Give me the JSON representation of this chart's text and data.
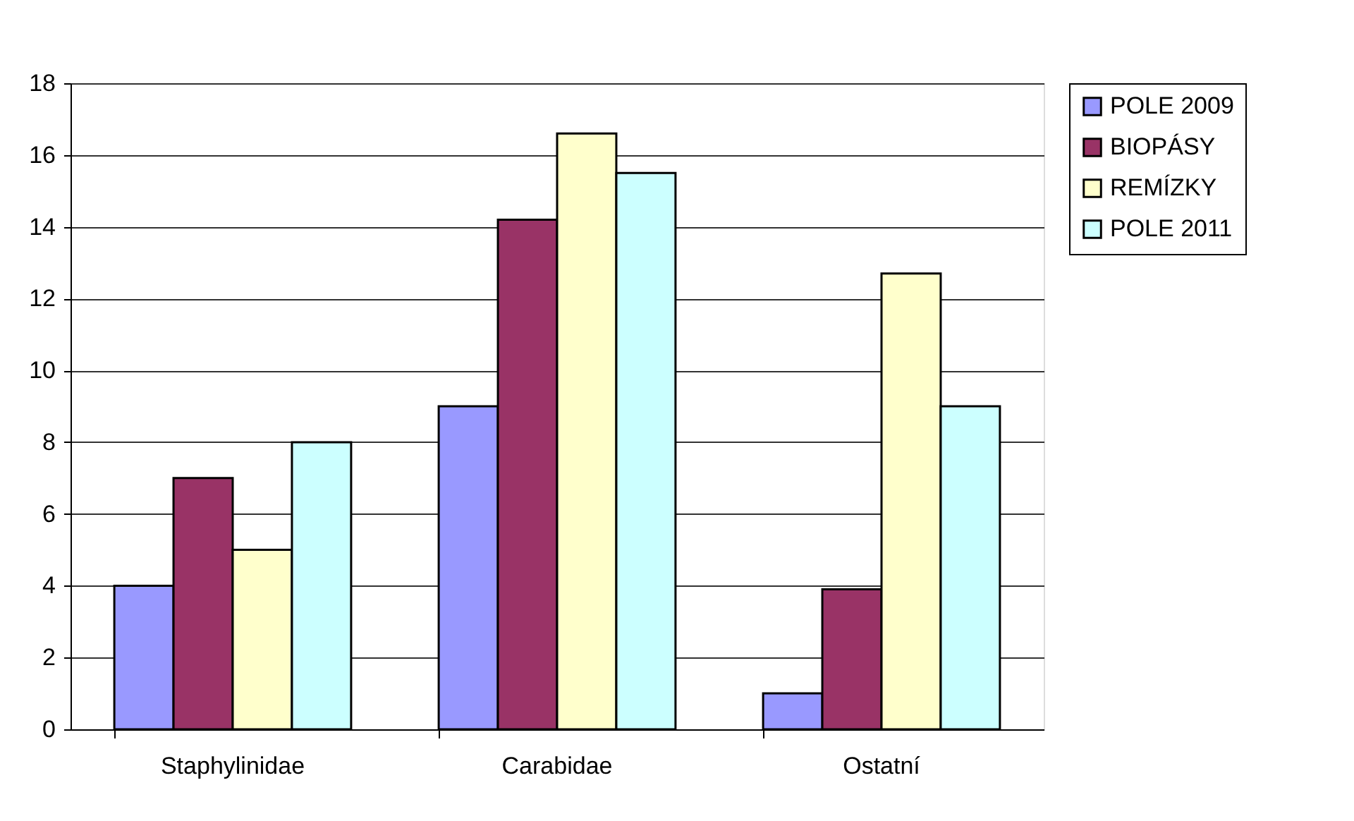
{
  "chart_data": {
    "type": "bar",
    "categories": [
      "Staphylinidae",
      "Carabidae",
      "Ostatní"
    ],
    "series": [
      {
        "name": "POLE 2009",
        "color": "#9999ff",
        "values": [
          4,
          9,
          1
        ]
      },
      {
        "name": "BIOPÁSY",
        "color": "#993366",
        "values": [
          7,
          14.2,
          3.9
        ]
      },
      {
        "name": "REMÍZKY",
        "color": "#ffffcc",
        "values": [
          5,
          16.6,
          12.7
        ]
      },
      {
        "name": "POLE 2011",
        "color": "#ccffff",
        "values": [
          8,
          15.5,
          9
        ]
      }
    ],
    "ylim": [
      0,
      18
    ],
    "yticks": [
      0,
      2,
      4,
      6,
      8,
      10,
      12,
      14,
      16,
      18
    ],
    "grid": "y",
    "legend": "right"
  }
}
